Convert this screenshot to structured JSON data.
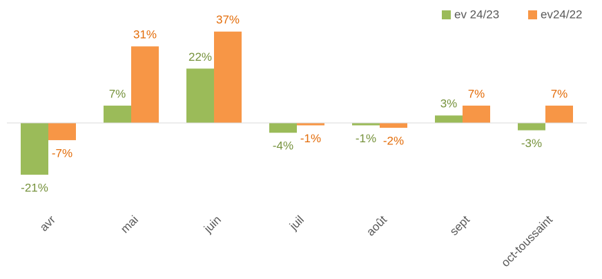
{
  "chart_data": {
    "type": "bar",
    "categories": [
      "avr",
      "mai",
      "juin",
      "juil",
      "août",
      "sept",
      "oct-toussaint"
    ],
    "series": [
      {
        "name": "ev 24/23",
        "color": "#9bbb59",
        "label_color": "#76923c",
        "values": [
          -21,
          7,
          22,
          -4,
          -1,
          3,
          -3
        ],
        "value_labels": [
          "-21%",
          "7%",
          "22%",
          "-4%",
          "-1%",
          "3%",
          "-3%"
        ]
      },
      {
        "name": "ev24/22",
        "color": "#f79646",
        "label_color": "#e36c09",
        "values": [
          -7,
          31,
          37,
          -1,
          -2,
          7,
          7
        ],
        "value_labels": [
          "-7%",
          "31%",
          "37%",
          "-1%",
          "-2%",
          "7%",
          "7%"
        ]
      }
    ],
    "ylim": [
      -35,
      47
    ],
    "legend": "top-right"
  }
}
